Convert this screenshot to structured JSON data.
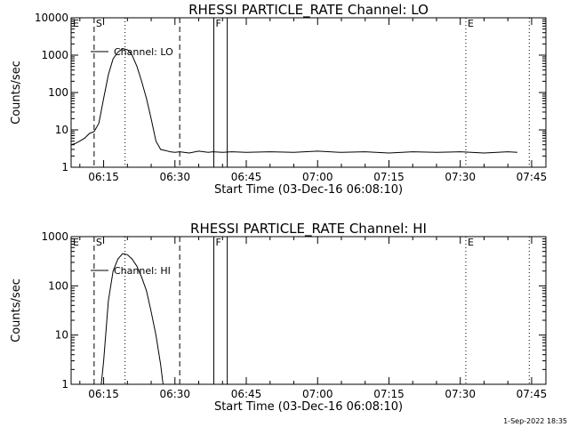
{
  "footer": {
    "date_stamp": "1-Sep-2022 18:35"
  },
  "chart_data": [
    {
      "type": "line",
      "title": "RHESSI PARTICLE_RATE Channel: LO",
      "xlabel": "Start Time (03-Dec-16 06:08:10)",
      "ylabel": "Counts/sec",
      "y_scale": "log",
      "ylim": [
        1,
        10000
      ],
      "y_tick_labels": [
        "1",
        "10",
        "100",
        "1000",
        "10000"
      ],
      "xlim": [
        "06:08:10",
        "07:48:00"
      ],
      "x_tick_labels": [
        "06:15",
        "06:30",
        "06:45",
        "07:00",
        "07:15",
        "07:30",
        "07:45"
      ],
      "grid": false,
      "legend": {
        "label": "Channel: LO",
        "position": "upper-left"
      },
      "series": [
        {
          "name": "Channel: LO",
          "x": [
            "06:08:10",
            "06:09:00",
            "06:10:00",
            "06:11:00",
            "06:12:00",
            "06:13:00",
            "06:14:00",
            "06:15:00",
            "06:16:00",
            "06:17:00",
            "06:18:00",
            "06:19:00",
            "06:20:00",
            "06:21:00",
            "06:22:00",
            "06:23:00",
            "06:24:00",
            "06:25:00",
            "06:26:00",
            "06:27:00",
            "06:28:00",
            "06:29:00",
            "06:30:00",
            "06:31:00",
            "06:33:00",
            "06:35:00",
            "06:37:00",
            "06:38:00",
            "06:40:00",
            "06:42:00",
            "06:45:00",
            "06:50:00",
            "06:55:00",
            "07:00:00",
            "07:05:00",
            "07:10:00",
            "07:15:00",
            "07:20:00",
            "07:25:00",
            "07:30:00",
            "07:35:00",
            "07:40:00",
            "07:42:00"
          ],
          "y": [
            4,
            4.3,
            5,
            6,
            8,
            9,
            15,
            70,
            300,
            800,
            1200,
            1500,
            1400,
            1000,
            500,
            200,
            70,
            20,
            5,
            3,
            2.8,
            2.6,
            2.5,
            2.6,
            2.4,
            2.7,
            2.5,
            2.6,
            2.5,
            2.6,
            2.5,
            2.6,
            2.5,
            2.7,
            2.5,
            2.6,
            2.4,
            2.6,
            2.5,
            2.6,
            2.4,
            2.6,
            2.5
          ]
        }
      ],
      "markers": [
        {
          "label": "E",
          "time": "06:08:10",
          "style": "none"
        },
        {
          "label": "S",
          "time": "06:13:00",
          "style": "dashed"
        },
        {
          "label": "",
          "time": "06:19:30",
          "style": "dotted"
        },
        {
          "label": "",
          "time": "06:31:00",
          "style": "dashed"
        },
        {
          "label": "F",
          "time": "06:38:10",
          "style": "solid"
        },
        {
          "label": "",
          "time": "06:41:00",
          "style": "solid"
        },
        {
          "label": "E",
          "time": "07:31:10",
          "style": "dotted"
        },
        {
          "label": "",
          "time": "07:44:30",
          "style": "dotted"
        }
      ]
    },
    {
      "type": "line",
      "title": "RHESSI PARTICLE_RATE Channel: HI",
      "xlabel": "Start Time (03-Dec-16 06:08:10)",
      "ylabel": "Counts/sec",
      "y_scale": "log",
      "ylim": [
        1,
        1000
      ],
      "y_tick_labels": [
        "1",
        "10",
        "100",
        "1000"
      ],
      "xlim": [
        "06:08:10",
        "07:48:00"
      ],
      "x_tick_labels": [
        "06:15",
        "06:30",
        "06:45",
        "07:00",
        "07:15",
        "07:30",
        "07:45"
      ],
      "grid": false,
      "legend": {
        "label": "Channel: HI",
        "position": "upper-left"
      },
      "series": [
        {
          "name": "Channel: HI",
          "x": [
            "06:14:30",
            "06:15:00",
            "06:16:00",
            "06:17:00",
            "06:18:00",
            "06:19:00",
            "06:20:00",
            "06:21:00",
            "06:22:00",
            "06:23:00",
            "06:24:00",
            "06:25:00",
            "06:26:00",
            "06:27:00",
            "06:27:30"
          ],
          "y": [
            1,
            3,
            50,
            200,
            350,
            450,
            430,
            350,
            250,
            150,
            80,
            30,
            10,
            2.5,
            1
          ]
        }
      ],
      "markers": [
        {
          "label": "E",
          "time": "06:08:10",
          "style": "none"
        },
        {
          "label": "S",
          "time": "06:13:00",
          "style": "dashed"
        },
        {
          "label": "",
          "time": "06:19:30",
          "style": "dotted"
        },
        {
          "label": "",
          "time": "06:31:00",
          "style": "dashed"
        },
        {
          "label": "F",
          "time": "06:38:10",
          "style": "solid"
        },
        {
          "label": "",
          "time": "06:41:00",
          "style": "solid"
        },
        {
          "label": "E",
          "time": "07:31:10",
          "style": "dotted"
        },
        {
          "label": "",
          "time": "07:44:30",
          "style": "dotted"
        }
      ]
    }
  ]
}
